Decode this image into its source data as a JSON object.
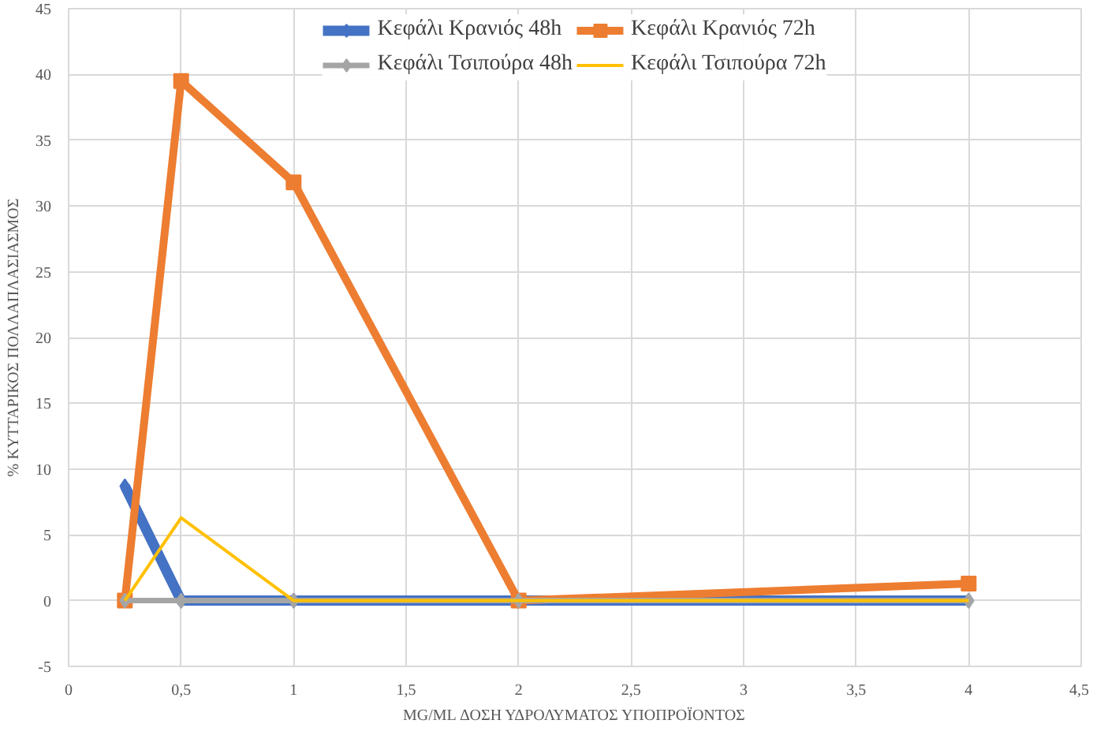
{
  "chart_data": {
    "type": "line",
    "xlabel": "MG/ML ΔΟΣΗ ΥΔΡΟΛΥΜΑΤΟΣ ΥΠΟΠΡΟΪΟΝΤΟΣ",
    "ylabel": "% ΚΥΤΤΑΡΙΚΟΣ ΠΟΛΛΑΠΛΑΣΙΑΣΜΟΣ",
    "x": [
      0.25,
      0.5,
      1,
      2,
      4
    ],
    "series": [
      {
        "name": "Κεφάλι Κρανιός 48h",
        "color": "#4472c4",
        "marker": "diamond",
        "values": [
          8.7,
          0,
          0,
          0,
          0
        ]
      },
      {
        "name": "Κεφάλι Κρανιός 72h",
        "color": "#ed7d31",
        "marker": "square",
        "values": [
          0,
          39.5,
          31.8,
          0,
          1.3
        ]
      },
      {
        "name": "Κεφάλι Τσιπούρα 48h",
        "color": "#a5a5a5",
        "marker": "diamond",
        "values": [
          0,
          0,
          0,
          0,
          0
        ]
      },
      {
        "name": "Κεφάλι Τσιπούρα 72h",
        "color": "#ffc000",
        "marker": "none",
        "values": [
          0,
          6.3,
          0,
          0,
          0
        ]
      }
    ],
    "xlim": [
      0,
      4.5
    ],
    "xticks": [
      0,
      {
        "value": 0.5,
        "label": "0,5"
      },
      1,
      {
        "value": 1.5,
        "label": "1,5"
      },
      2,
      {
        "value": 2.5,
        "label": "2,5"
      },
      3,
      {
        "value": 3.5,
        "label": "3,5"
      },
      4,
      {
        "value": 4.5,
        "label": "4,5"
      }
    ],
    "ylim": [
      -5,
      45
    ],
    "yticks": [
      -5,
      0,
      5,
      10,
      15,
      20,
      25,
      30,
      35,
      40,
      45
    ],
    "grid": true,
    "legend": "top",
    "line_style": "solid"
  }
}
